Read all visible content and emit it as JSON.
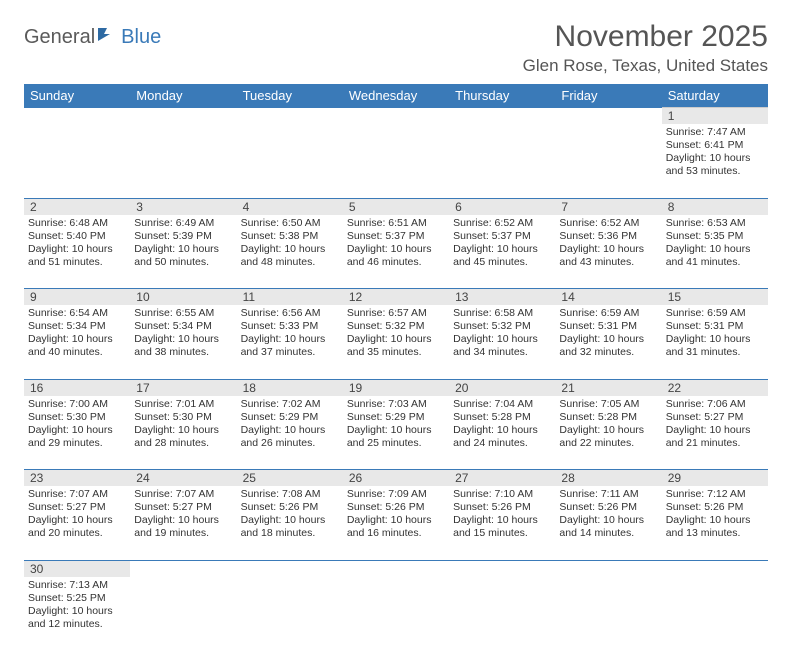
{
  "logo": {
    "part1": "General",
    "part2": "Blue"
  },
  "title": "November 2025",
  "location": "Glen Rose, Texas, United States",
  "colors": {
    "header_bg": "#3a7ab8",
    "header_text": "#ffffff",
    "daynum_bg": "#e8e8e8",
    "border": "#3a7ab8",
    "text": "#333333",
    "title_text": "#555555"
  },
  "fonts": {
    "title_size": 30,
    "location_size": 17,
    "header_size": 13,
    "daynum_size": 12,
    "info_size": 10.5
  },
  "weekdays": [
    "Sunday",
    "Monday",
    "Tuesday",
    "Wednesday",
    "Thursday",
    "Friday",
    "Saturday"
  ],
  "weeks": [
    {
      "nums": [
        "",
        "",
        "",
        "",
        "",
        "",
        "1"
      ],
      "cells": [
        null,
        null,
        null,
        null,
        null,
        null,
        {
          "sunrise": "Sunrise: 7:47 AM",
          "sunset": "Sunset: 6:41 PM",
          "daylight": "Daylight: 10 hours and 53 minutes."
        }
      ]
    },
    {
      "nums": [
        "2",
        "3",
        "4",
        "5",
        "6",
        "7",
        "8"
      ],
      "cells": [
        {
          "sunrise": "Sunrise: 6:48 AM",
          "sunset": "Sunset: 5:40 PM",
          "daylight": "Daylight: 10 hours and 51 minutes."
        },
        {
          "sunrise": "Sunrise: 6:49 AM",
          "sunset": "Sunset: 5:39 PM",
          "daylight": "Daylight: 10 hours and 50 minutes."
        },
        {
          "sunrise": "Sunrise: 6:50 AM",
          "sunset": "Sunset: 5:38 PM",
          "daylight": "Daylight: 10 hours and 48 minutes."
        },
        {
          "sunrise": "Sunrise: 6:51 AM",
          "sunset": "Sunset: 5:37 PM",
          "daylight": "Daylight: 10 hours and 46 minutes."
        },
        {
          "sunrise": "Sunrise: 6:52 AM",
          "sunset": "Sunset: 5:37 PM",
          "daylight": "Daylight: 10 hours and 45 minutes."
        },
        {
          "sunrise": "Sunrise: 6:52 AM",
          "sunset": "Sunset: 5:36 PM",
          "daylight": "Daylight: 10 hours and 43 minutes."
        },
        {
          "sunrise": "Sunrise: 6:53 AM",
          "sunset": "Sunset: 5:35 PM",
          "daylight": "Daylight: 10 hours and 41 minutes."
        }
      ]
    },
    {
      "nums": [
        "9",
        "10",
        "11",
        "12",
        "13",
        "14",
        "15"
      ],
      "cells": [
        {
          "sunrise": "Sunrise: 6:54 AM",
          "sunset": "Sunset: 5:34 PM",
          "daylight": "Daylight: 10 hours and 40 minutes."
        },
        {
          "sunrise": "Sunrise: 6:55 AM",
          "sunset": "Sunset: 5:34 PM",
          "daylight": "Daylight: 10 hours and 38 minutes."
        },
        {
          "sunrise": "Sunrise: 6:56 AM",
          "sunset": "Sunset: 5:33 PM",
          "daylight": "Daylight: 10 hours and 37 minutes."
        },
        {
          "sunrise": "Sunrise: 6:57 AM",
          "sunset": "Sunset: 5:32 PM",
          "daylight": "Daylight: 10 hours and 35 minutes."
        },
        {
          "sunrise": "Sunrise: 6:58 AM",
          "sunset": "Sunset: 5:32 PM",
          "daylight": "Daylight: 10 hours and 34 minutes."
        },
        {
          "sunrise": "Sunrise: 6:59 AM",
          "sunset": "Sunset: 5:31 PM",
          "daylight": "Daylight: 10 hours and 32 minutes."
        },
        {
          "sunrise": "Sunrise: 6:59 AM",
          "sunset": "Sunset: 5:31 PM",
          "daylight": "Daylight: 10 hours and 31 minutes."
        }
      ]
    },
    {
      "nums": [
        "16",
        "17",
        "18",
        "19",
        "20",
        "21",
        "22"
      ],
      "cells": [
        {
          "sunrise": "Sunrise: 7:00 AM",
          "sunset": "Sunset: 5:30 PM",
          "daylight": "Daylight: 10 hours and 29 minutes."
        },
        {
          "sunrise": "Sunrise: 7:01 AM",
          "sunset": "Sunset: 5:30 PM",
          "daylight": "Daylight: 10 hours and 28 minutes."
        },
        {
          "sunrise": "Sunrise: 7:02 AM",
          "sunset": "Sunset: 5:29 PM",
          "daylight": "Daylight: 10 hours and 26 minutes."
        },
        {
          "sunrise": "Sunrise: 7:03 AM",
          "sunset": "Sunset: 5:29 PM",
          "daylight": "Daylight: 10 hours and 25 minutes."
        },
        {
          "sunrise": "Sunrise: 7:04 AM",
          "sunset": "Sunset: 5:28 PM",
          "daylight": "Daylight: 10 hours and 24 minutes."
        },
        {
          "sunrise": "Sunrise: 7:05 AM",
          "sunset": "Sunset: 5:28 PM",
          "daylight": "Daylight: 10 hours and 22 minutes."
        },
        {
          "sunrise": "Sunrise: 7:06 AM",
          "sunset": "Sunset: 5:27 PM",
          "daylight": "Daylight: 10 hours and 21 minutes."
        }
      ]
    },
    {
      "nums": [
        "23",
        "24",
        "25",
        "26",
        "27",
        "28",
        "29"
      ],
      "cells": [
        {
          "sunrise": "Sunrise: 7:07 AM",
          "sunset": "Sunset: 5:27 PM",
          "daylight": "Daylight: 10 hours and 20 minutes."
        },
        {
          "sunrise": "Sunrise: 7:07 AM",
          "sunset": "Sunset: 5:27 PM",
          "daylight": "Daylight: 10 hours and 19 minutes."
        },
        {
          "sunrise": "Sunrise: 7:08 AM",
          "sunset": "Sunset: 5:26 PM",
          "daylight": "Daylight: 10 hours and 18 minutes."
        },
        {
          "sunrise": "Sunrise: 7:09 AM",
          "sunset": "Sunset: 5:26 PM",
          "daylight": "Daylight: 10 hours and 16 minutes."
        },
        {
          "sunrise": "Sunrise: 7:10 AM",
          "sunset": "Sunset: 5:26 PM",
          "daylight": "Daylight: 10 hours and 15 minutes."
        },
        {
          "sunrise": "Sunrise: 7:11 AM",
          "sunset": "Sunset: 5:26 PM",
          "daylight": "Daylight: 10 hours and 14 minutes."
        },
        {
          "sunrise": "Sunrise: 7:12 AM",
          "sunset": "Sunset: 5:26 PM",
          "daylight": "Daylight: 10 hours and 13 minutes."
        }
      ]
    },
    {
      "nums": [
        "30",
        "",
        "",
        "",
        "",
        "",
        ""
      ],
      "cells": [
        {
          "sunrise": "Sunrise: 7:13 AM",
          "sunset": "Sunset: 5:25 PM",
          "daylight": "Daylight: 10 hours and 12 minutes."
        },
        null,
        null,
        null,
        null,
        null,
        null
      ]
    }
  ]
}
